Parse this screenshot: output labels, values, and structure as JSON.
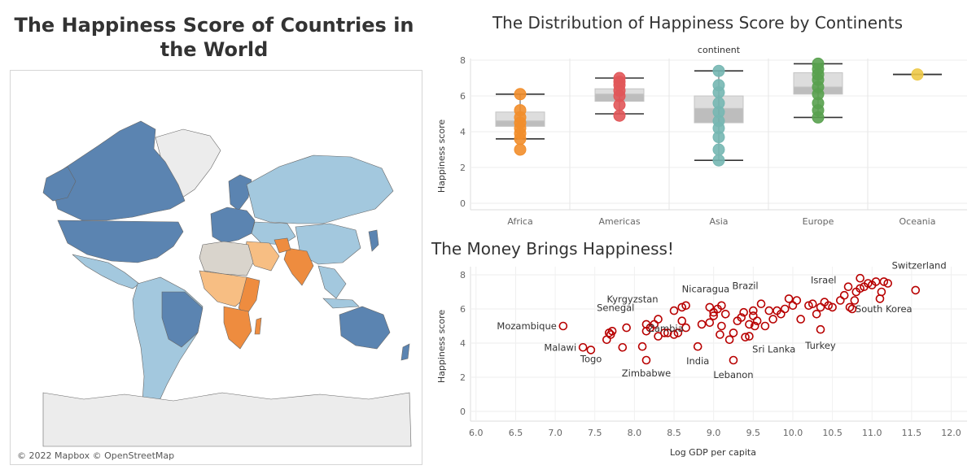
{
  "map": {
    "title": "The Happiness Score of Countries in the World",
    "credit": "© 2022 Mapbox © OpenStreetMap",
    "colors": {
      "high": "#5b84b1",
      "mid_high": "#a3c8de",
      "neutral": "#d9d4cc",
      "mid_low": "#f7be83",
      "low": "#ee8c3f",
      "no_data": "#ececec"
    }
  },
  "box_chart": {
    "title": "The Distribution of Happiness Score by Continents",
    "chart_data": {
      "type": "box",
      "header": "continent",
      "ylabel": "Happiness score",
      "ylim": [
        0,
        8
      ],
      "yticks": [
        0,
        2,
        4,
        6,
        8
      ],
      "categories": [
        "Africa",
        "Americas",
        "Asia",
        "Europe",
        "Oceania"
      ],
      "colors": [
        "#f28e2b",
        "#e15759",
        "#76b7b2",
        "#59a14f",
        "#edc948"
      ],
      "boxes": [
        {
          "min": 3.6,
          "q1": 4.3,
          "median": 4.6,
          "q3": 5.1,
          "max": 6.1
        },
        {
          "min": 5.0,
          "q1": 5.7,
          "median": 6.1,
          "q3": 6.4,
          "max": 7.0
        },
        {
          "min": 2.4,
          "q1": 4.5,
          "median": 5.3,
          "q3": 6.0,
          "max": 7.4
        },
        {
          "min": 4.8,
          "q1": 6.1,
          "median": 6.5,
          "q3": 7.3,
          "max": 7.8
        },
        {
          "min": 7.2,
          "q1": 7.2,
          "median": 7.2,
          "q3": 7.2,
          "max": 7.2
        }
      ],
      "points": [
        [
          3.0,
          3.6,
          3.9,
          4.2,
          4.5,
          4.8,
          5.2,
          6.1
        ],
        [
          4.9,
          5.5,
          6.0,
          6.3,
          6.6,
          6.8,
          7.0
        ],
        [
          2.4,
          3.0,
          3.7,
          4.2,
          4.6,
          5.1,
          5.6,
          6.2,
          6.6,
          7.4
        ],
        [
          4.8,
          5.2,
          5.6,
          6.1,
          6.5,
          6.9,
          7.2,
          7.5,
          7.8
        ],
        [
          7.2
        ]
      ]
    }
  },
  "scatter_chart": {
    "title": "The Money Brings Happiness!",
    "chart_data": {
      "type": "scatter",
      "xlabel": "Log GDP per capita",
      "ylabel": "Happiness score",
      "xlim": [
        6.0,
        12.0
      ],
      "ylim": [
        0,
        8
      ],
      "xticks": [
        "6.0",
        "6.5",
        "7.0",
        "7.5",
        "8.0",
        "8.5",
        "9.0",
        "9.5",
        "10.0",
        "10.5",
        "11.0",
        "11.5",
        "12.0"
      ],
      "yticks": [
        0,
        2,
        4,
        6,
        8
      ],
      "color": "#b80000",
      "points": [
        [
          7.1,
          5.0
        ],
        [
          7.35,
          3.75
        ],
        [
          7.45,
          3.6
        ],
        [
          7.65,
          4.2
        ],
        [
          7.68,
          4.6
        ],
        [
          7.7,
          4.5
        ],
        [
          7.72,
          4.7
        ],
        [
          7.85,
          3.75
        ],
        [
          7.9,
          4.9
        ],
        [
          8.1,
          3.8
        ],
        [
          8.15,
          3.0
        ],
        [
          8.15,
          4.7
        ],
        [
          8.15,
          5.1
        ],
        [
          8.2,
          4.9
        ],
        [
          8.25,
          5.1
        ],
        [
          8.3,
          5.4
        ],
        [
          8.3,
          4.4
        ],
        [
          8.38,
          4.6
        ],
        [
          8.42,
          4.6
        ],
        [
          8.5,
          4.5
        ],
        [
          8.55,
          4.6
        ],
        [
          8.5,
          5.9
        ],
        [
          8.6,
          6.1
        ],
        [
          8.65,
          6.2
        ],
        [
          8.6,
          5.3
        ],
        [
          8.65,
          4.9
        ],
        [
          8.8,
          3.8
        ],
        [
          8.85,
          5.1
        ],
        [
          8.95,
          5.2
        ],
        [
          8.95,
          6.1
        ],
        [
          9.0,
          5.8
        ],
        [
          9.0,
          5.6
        ],
        [
          9.05,
          6.0
        ],
        [
          9.1,
          6.2
        ],
        [
          9.08,
          4.5
        ],
        [
          9.1,
          5.0
        ],
        [
          9.15,
          5.7
        ],
        [
          9.2,
          4.2
        ],
        [
          9.25,
          3.0
        ],
        [
          9.25,
          4.6
        ],
        [
          9.3,
          5.3
        ],
        [
          9.35,
          5.5
        ],
        [
          9.38,
          5.8
        ],
        [
          9.4,
          4.35
        ],
        [
          9.45,
          4.4
        ],
        [
          9.45,
          5.1
        ],
        [
          9.5,
          5.6
        ],
        [
          9.5,
          5.9
        ],
        [
          9.52,
          5.0
        ],
        [
          9.55,
          5.3
        ],
        [
          9.6,
          6.3
        ],
        [
          9.65,
          5.0
        ],
        [
          9.7,
          5.9
        ],
        [
          9.75,
          5.4
        ],
        [
          9.8,
          5.9
        ],
        [
          9.85,
          5.7
        ],
        [
          9.9,
          6.0
        ],
        [
          9.95,
          6.6
        ],
        [
          10.0,
          6.2
        ],
        [
          10.05,
          6.5
        ],
        [
          10.1,
          5.4
        ],
        [
          10.2,
          6.2
        ],
        [
          10.25,
          6.3
        ],
        [
          10.3,
          5.7
        ],
        [
          10.35,
          6.1
        ],
        [
          10.35,
          4.8
        ],
        [
          10.4,
          6.4
        ],
        [
          10.45,
          6.2
        ],
        [
          10.5,
          6.1
        ],
        [
          10.6,
          6.5
        ],
        [
          10.65,
          6.8
        ],
        [
          10.7,
          7.3
        ],
        [
          10.72,
          6.1
        ],
        [
          10.75,
          6.0
        ],
        [
          10.78,
          6.5
        ],
        [
          10.8,
          7.0
        ],
        [
          10.85,
          7.2
        ],
        [
          10.85,
          7.8
        ],
        [
          10.9,
          7.3
        ],
        [
          10.95,
          7.5
        ],
        [
          11.0,
          7.4
        ],
        [
          11.05,
          7.6
        ],
        [
          11.1,
          6.6
        ],
        [
          11.12,
          7.0
        ],
        [
          11.15,
          7.6
        ],
        [
          11.2,
          7.5
        ],
        [
          11.55,
          7.1
        ]
      ],
      "labels": [
        {
          "text": "Mozambique",
          "x": 7.1,
          "y": 5.0,
          "anchor": "end",
          "dx": -8,
          "dy": 4
        },
        {
          "text": "Malawi",
          "x": 7.35,
          "y": 3.75,
          "anchor": "end",
          "dx": -8,
          "dy": 4
        },
        {
          "text": "Togo",
          "x": 7.65,
          "y": 3.55,
          "anchor": "end",
          "dx": -6,
          "dy": 14
        },
        {
          "text": "Senegal",
          "x": 8.0,
          "y": 5.4,
          "anchor": "end",
          "dx": 0,
          "dy": -10
        },
        {
          "text": "Kyrgyzstan",
          "x": 8.3,
          "y": 6.1,
          "anchor": "end",
          "dx": 0,
          "dy": -6
        },
        {
          "text": "Zambia",
          "x": 8.15,
          "y": 4.1,
          "anchor": "start",
          "dx": 2,
          "dy": -12
        },
        {
          "text": "Zimbabwe",
          "x": 8.15,
          "y": 3.0,
          "anchor": "middle",
          "dx": 0,
          "dy": 20
        },
        {
          "text": "India",
          "x": 8.8,
          "y": 3.8,
          "anchor": "middle",
          "dx": 0,
          "dy": 22
        },
        {
          "text": "Nicaragua",
          "x": 8.9,
          "y": 6.4,
          "anchor": "middle",
          "dx": 0,
          "dy": -12
        },
        {
          "text": "Brazil",
          "x": 9.4,
          "y": 6.6,
          "anchor": "middle",
          "dx": 0,
          "dy": -12
        },
        {
          "text": "Lebanon",
          "x": 9.25,
          "y": 3.0,
          "anchor": "middle",
          "dx": 0,
          "dy": 22
        },
        {
          "text": "Sri Lanka",
          "x": 9.55,
          "y": 4.4,
          "anchor": "start",
          "dx": -6,
          "dy": 20
        },
        {
          "text": "Turkey",
          "x": 10.35,
          "y": 4.8,
          "anchor": "middle",
          "dx": 0,
          "dy": 24
        },
        {
          "text": "Israel",
          "x": 10.55,
          "y": 7.3,
          "anchor": "end",
          "dx": 0,
          "dy": -4
        },
        {
          "text": "South Korea",
          "x": 10.75,
          "y": 6.0,
          "anchor": "start",
          "dx": 4,
          "dy": 4
        },
        {
          "text": "Switzerland",
          "x": 11.25,
          "y": 7.6,
          "anchor": "start",
          "dx": 0,
          "dy": -16
        }
      ]
    }
  }
}
